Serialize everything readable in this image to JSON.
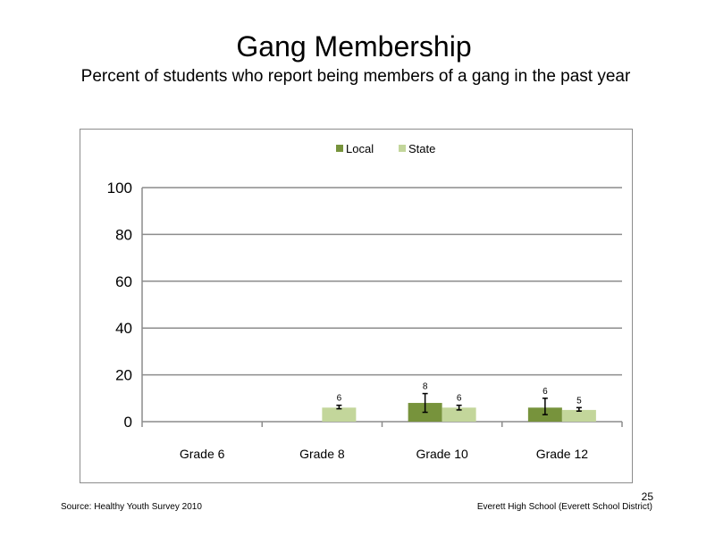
{
  "slide": {
    "title": "Gang Membership",
    "subtitle": "Percent of students who report being members of a gang in the past year",
    "source": "Source: Healthy Youth Survey 2010",
    "school": "Everett High School (Everett School District)",
    "slide_number": "25"
  },
  "chart_data": {
    "type": "bar",
    "categories": [
      "Grade 6",
      "Grade 8",
      "Grade 10",
      "Grade 12"
    ],
    "series": [
      {
        "name": "Local",
        "color": "#77933c",
        "values": [
          null,
          null,
          8,
          6
        ],
        "labels": [
          "",
          "",
          "8",
          "6"
        ],
        "error": [
          null,
          null,
          [
            4,
            12
          ],
          [
            3,
            10
          ]
        ]
      },
      {
        "name": "State",
        "color": "#c3d69b",
        "values": [
          null,
          6,
          6,
          5
        ],
        "labels": [
          "",
          "6",
          "6",
          "5"
        ],
        "error": [
          null,
          [
            5.5,
            7
          ],
          [
            5,
            7
          ],
          [
            4.5,
            6
          ]
        ]
      }
    ],
    "ylim": [
      0,
      100
    ],
    "yticks": [
      0,
      20,
      40,
      60,
      80,
      100
    ],
    "grid": true,
    "legend": "top"
  }
}
